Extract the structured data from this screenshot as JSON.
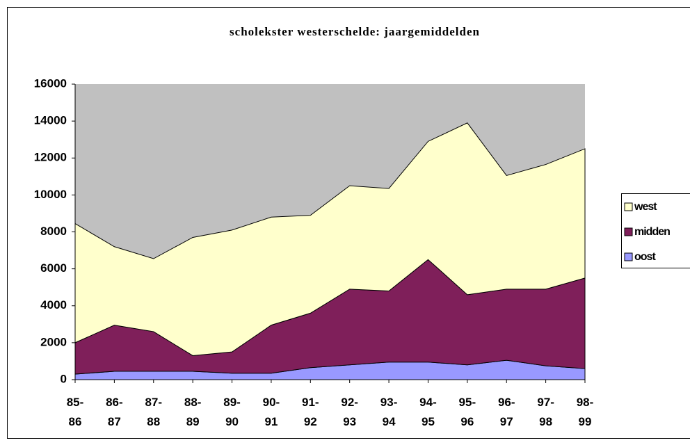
{
  "chart_data": {
    "type": "area",
    "stacked": true,
    "title": "scholekster westerschelde: jaargemiddelden",
    "categories": [
      "85-86",
      "86-87",
      "87-88",
      "88-89",
      "89-90",
      "90-91",
      "91-92",
      "92-93",
      "93-94",
      "94-95",
      "95-96",
      "96-97",
      "97-98",
      "98-99"
    ],
    "series": [
      {
        "name": "oost",
        "color": "#9999ff",
        "values": [
          300,
          450,
          450,
          450,
          350,
          350,
          650,
          800,
          950,
          950,
          800,
          1050,
          750,
          600
        ]
      },
      {
        "name": "midden",
        "color": "#7f1f5a",
        "values": [
          1700,
          2500,
          2150,
          850,
          1150,
          2600,
          2950,
          4100,
          3850,
          5550,
          3800,
          3850,
          4150,
          4900
        ]
      },
      {
        "name": "west",
        "color": "#ffffcc",
        "values": [
          6450,
          4250,
          3950,
          6400,
          6600,
          5850,
          5300,
          5600,
          5550,
          6400,
          9300,
          6150,
          6750,
          7000
        ]
      }
    ],
    "ylim": [
      0,
      16000
    ],
    "yticks": [
      0,
      2000,
      4000,
      6000,
      8000,
      10000,
      12000,
      14000,
      16000
    ],
    "plot_background": "#c0c0c0",
    "legend": "right"
  }
}
